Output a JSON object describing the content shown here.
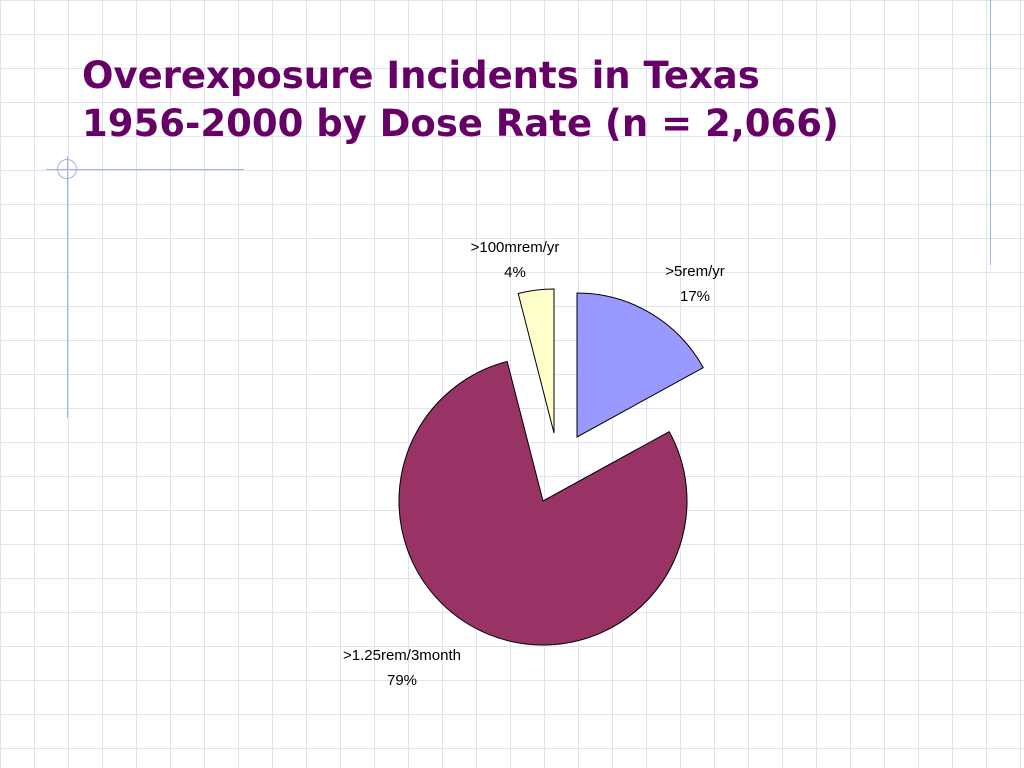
{
  "slide": {
    "title_line1": "Overexposure Incidents in Texas",
    "title_line2": "1956-2000 by Dose Rate (n = 2,066)"
  },
  "colors": {
    "title": "#660066",
    "gridline": "#dfe3f1",
    "accent_line": "#9fb3e6",
    "top_band": "#dfe6f7"
  },
  "chart_data": {
    "type": "pie",
    "title": "Overexposure Incidents in Texas 1956-2000 by Dose Rate (n = 2,066)",
    "exploded": true,
    "start": "top",
    "direction": "clockwise",
    "slices": [
      {
        "label": ">5rem/yr",
        "value": 17,
        "percent_label": "17%",
        "color": "#9999ff"
      },
      {
        "label": ">1.25rem/3month",
        "value": 79,
        "percent_label": "79%",
        "color": "#993366"
      },
      {
        "label": ">100mrem/yr",
        "value": 4,
        "percent_label": "4%",
        "color": "#ffffcc"
      }
    ]
  }
}
